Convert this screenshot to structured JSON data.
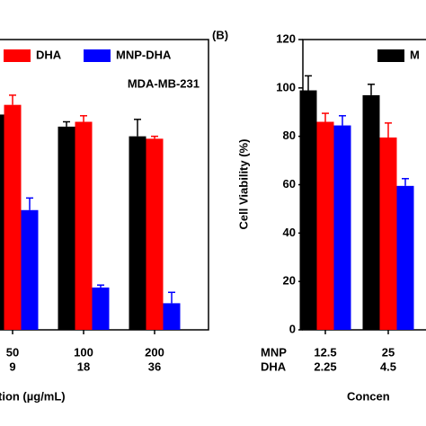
{
  "chart_data": [
    {
      "type": "bar",
      "annotation": "MDA-MB-231",
      "x_label": "tion (µg/mL)",
      "categories": [
        [
          "50",
          "9"
        ],
        [
          "100",
          "18"
        ],
        [
          "200",
          "36"
        ]
      ],
      "ylim": [
        0,
        120
      ],
      "series": [
        {
          "name": null,
          "color": "#000000",
          "values": [
            89,
            84,
            80
          ],
          "errors": [
            3,
            2,
            7
          ]
        },
        {
          "name": "DHA",
          "color": "#ff0000",
          "values": [
            93,
            86,
            79
          ],
          "errors": [
            4,
            2.5,
            1
          ]
        },
        {
          "name": "MNP-DHA",
          "color": "#0000ff",
          "values": [
            49.5,
            17.5,
            11
          ],
          "errors": [
            5,
            1,
            4.5
          ]
        }
      ]
    },
    {
      "type": "bar",
      "panel_label": "(B)",
      "y_label": "Cell Viability (%)",
      "x_label": "Concen",
      "category_rows": [
        "MNP",
        "DHA"
      ],
      "categories": [
        [
          "12.5",
          "2.25"
        ],
        [
          "25",
          "4.5"
        ]
      ],
      "ylim": [
        0,
        120
      ],
      "yticks": [
        0,
        20,
        40,
        60,
        80,
        100,
        120
      ],
      "series": [
        {
          "name": "M",
          "color": "#000000",
          "values": [
            99,
            97
          ],
          "errors": [
            6,
            4.5
          ]
        },
        {
          "name": null,
          "color": "#ff0000",
          "values": [
            86,
            79.5
          ],
          "errors": [
            3.5,
            6
          ]
        },
        {
          "name": null,
          "color": "#0000ff",
          "values": [
            84.5,
            59.5
          ],
          "errors": [
            4,
            3
          ]
        }
      ]
    }
  ]
}
